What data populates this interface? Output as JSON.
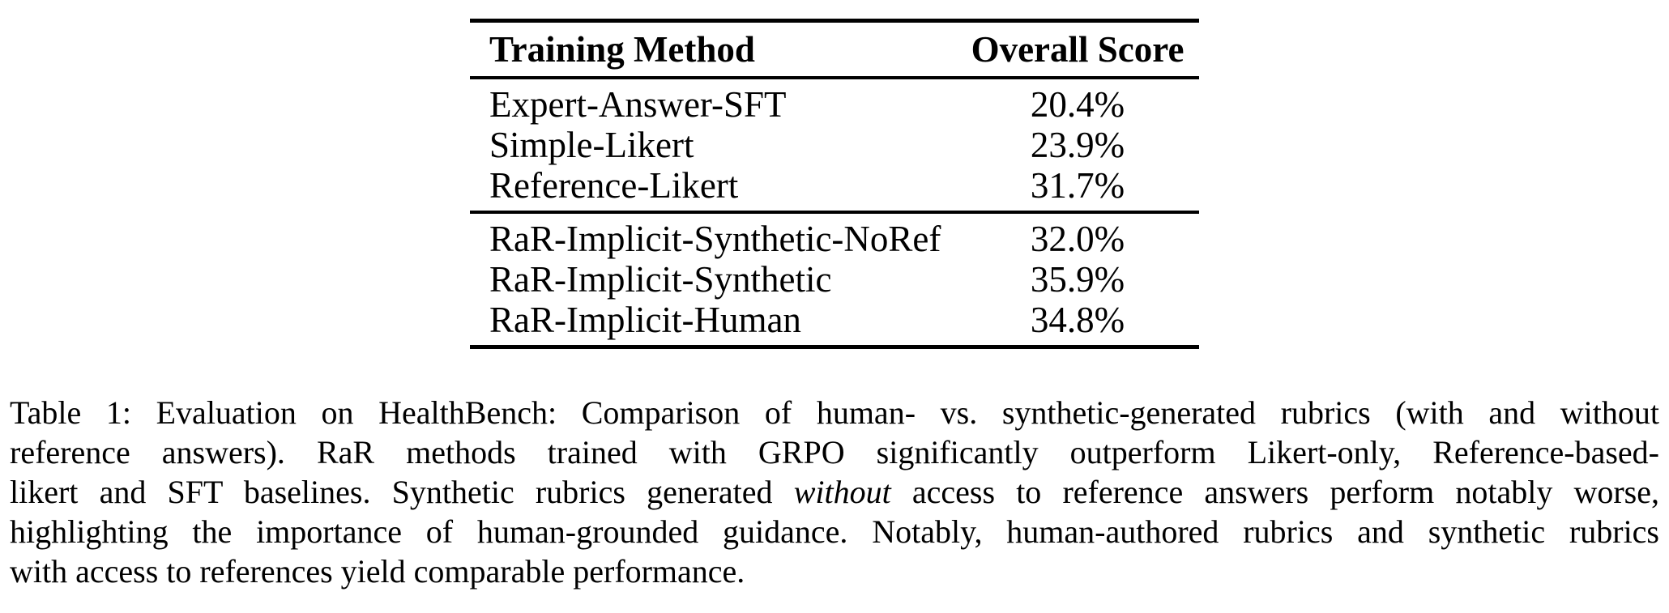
{
  "colors": {
    "text": "#000000",
    "background": "#ffffff",
    "rule": "#000000"
  },
  "table": {
    "header": {
      "method": "Training Method",
      "score": "Overall Score"
    },
    "groups": [
      {
        "rows": [
          {
            "method": "Expert-Answer-SFT",
            "score": "20.4%"
          },
          {
            "method": "Simple-Likert",
            "score": "23.9%"
          },
          {
            "method": "Reference-Likert",
            "score": "31.7%"
          }
        ]
      },
      {
        "rows": [
          {
            "method": "RaR-Implicit-Synthetic-NoRef",
            "score": "32.0%"
          },
          {
            "method": "RaR-Implicit-Synthetic",
            "score": "35.9%"
          },
          {
            "method": "RaR-Implicit-Human",
            "score": "34.8%"
          }
        ]
      }
    ]
  },
  "caption": {
    "lines": [
      {
        "text": "Table 1: Evaluation on HealthBench: Comparison of human- vs. synthetic-generated rubrics (with and without"
      },
      {
        "text": "reference answers). RaR methods trained with GRPO significantly outperform Likert-only, Reference-based-"
      },
      {
        "pre": "likert and SFT baselines. Synthetic rubrics generated ",
        "italic": "without",
        "post": " access to reference answers perform notably worse,"
      },
      {
        "text": "highlighting the importance of human-grounded guidance. Notably, human-authored rubrics and synthetic rubrics"
      },
      {
        "text": "with access to references yield comparable performance."
      }
    ]
  }
}
